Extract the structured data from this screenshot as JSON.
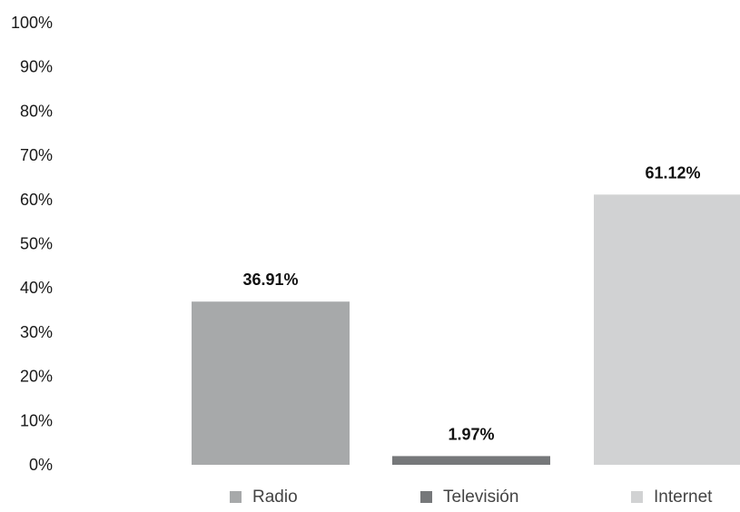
{
  "chart_data": {
    "type": "bar",
    "categories": [
      "Radio",
      "Televisión",
      "Internet"
    ],
    "values": [
      36.91,
      1.97,
      61.12
    ],
    "data_labels": [
      "36.91%",
      "1.97%",
      "61.12%"
    ],
    "colors": [
      "#a7a9aa",
      "#76787a",
      "#d1d2d3"
    ],
    "ylim": [
      0,
      100
    ],
    "yticks": [
      "0%",
      "10%",
      "20%",
      "30%",
      "40%",
      "50%",
      "60%",
      "70%",
      "80%",
      "90%",
      "100%"
    ],
    "grid": false,
    "legend": {
      "position": "bottom",
      "entries": [
        "Radio",
        "Televisión",
        "Internet"
      ]
    }
  }
}
